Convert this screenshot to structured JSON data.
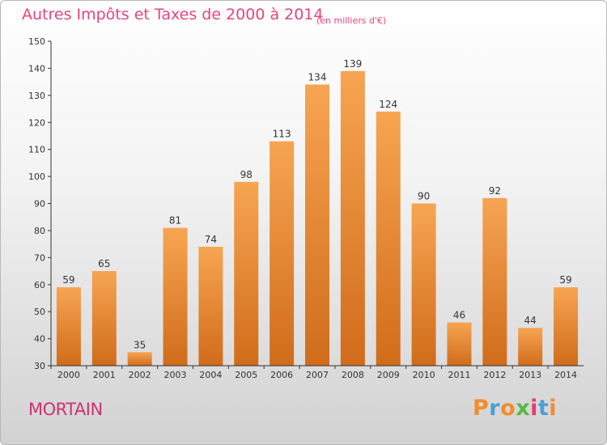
{
  "chart_data": {
    "type": "bar",
    "title": "Autres Impôts et Taxes de 2000 à 2014",
    "subtitle": "(en milliers d'€)",
    "categories": [
      "2000",
      "2001",
      "2002",
      "2003",
      "2004",
      "2005",
      "2006",
      "2007",
      "2008",
      "2009",
      "2010",
      "2011",
      "2012",
      "2013",
      "2014"
    ],
    "values": [
      59,
      65,
      35,
      81,
      74,
      98,
      113,
      134,
      139,
      124,
      90,
      46,
      92,
      44,
      59
    ],
    "ylim": [
      30,
      150
    ],
    "yticks": [
      30,
      40,
      50,
      60,
      70,
      80,
      90,
      100,
      110,
      120,
      130,
      140,
      150
    ],
    "grid": false,
    "data_labels": true,
    "bar_color_top": "#f7a552",
    "bar_color_bottom": "#d06c1a"
  },
  "footer": {
    "commune": "MORTAIN",
    "logo_text": "Proxiti",
    "logo_colors": [
      "#f28c28",
      "#4b9fd6",
      "#f28c28",
      "#58b847",
      "#e83b6e",
      "#4b9fd6",
      "#f28c28"
    ]
  },
  "colors": {
    "title": "#e8457a",
    "commune": "#cc3373",
    "axis": "#333333",
    "label": "#333333"
  }
}
